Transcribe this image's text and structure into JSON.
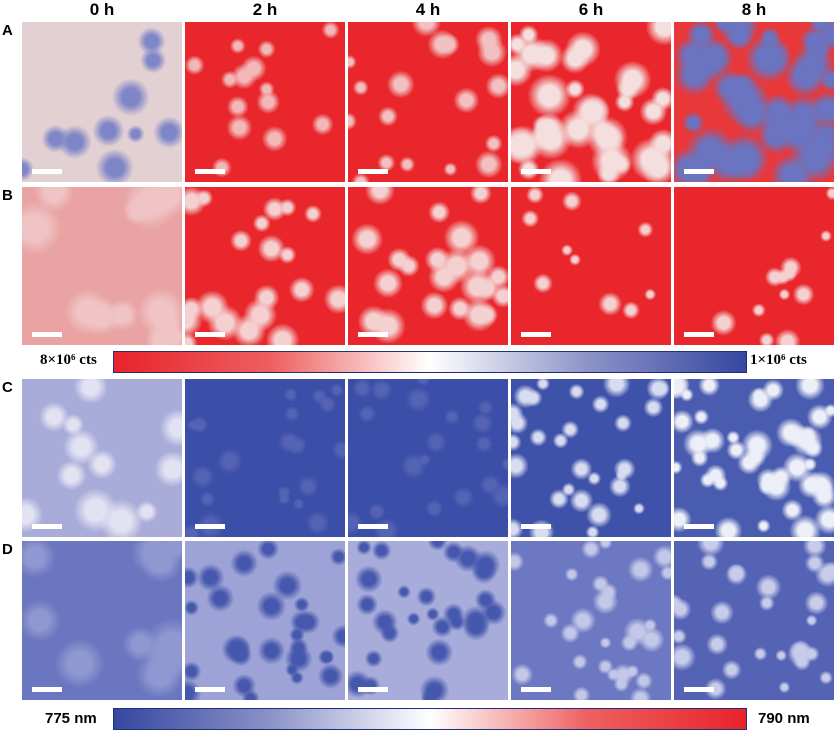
{
  "columns": [
    "0 h",
    "2 h",
    "4 h",
    "6 h",
    "8 h"
  ],
  "rows": [
    "A",
    "B",
    "C",
    "D"
  ],
  "colorbars": [
    {
      "left": "8×10⁶ cts",
      "right": "1×10⁶ cts"
    },
    {
      "left": "775 nm",
      "right": "790 nm"
    }
  ]
}
